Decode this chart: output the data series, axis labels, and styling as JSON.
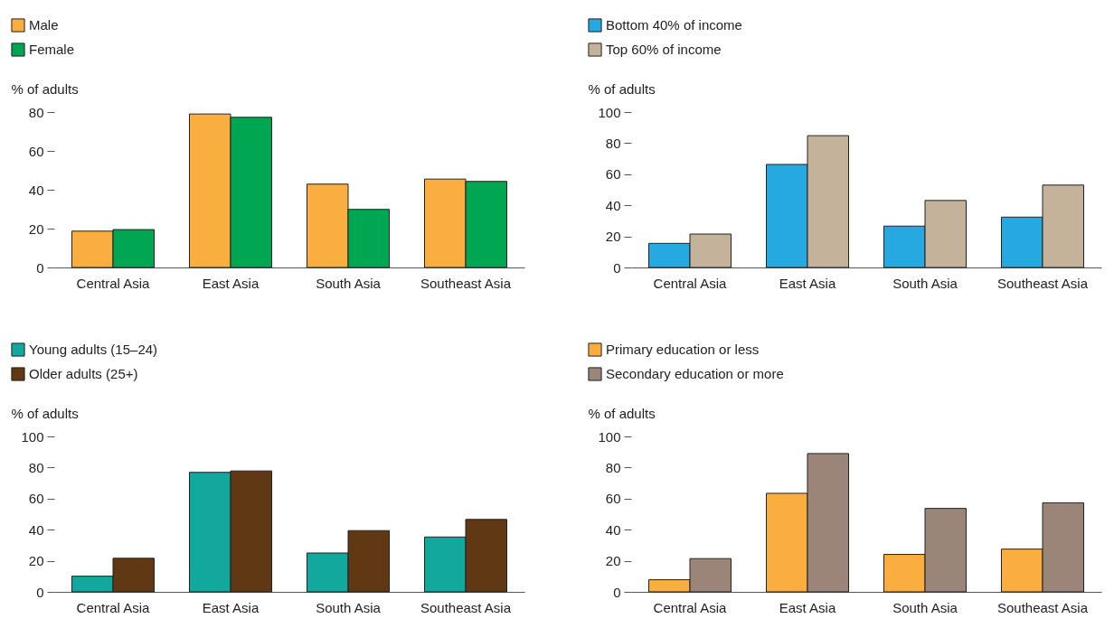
{
  "chart_data": [
    {
      "type": "bar",
      "ylabel": "% of adults",
      "categories": [
        "Central Asia",
        "East Asia",
        "South Asia",
        "Southeast Asia"
      ],
      "ylim": [
        0,
        80
      ],
      "yticks": [
        0,
        20,
        40,
        60,
        80
      ],
      "legend": "top left",
      "grid": false,
      "series": [
        {
          "name": "Male",
          "color": "#f9ae3f",
          "values": [
            18.7,
            79,
            42.9,
            45.5
          ]
        },
        {
          "name": "Female",
          "color": "#00a651",
          "values": [
            19.5,
            77.3,
            29.9,
            44.3
          ]
        }
      ]
    },
    {
      "type": "bar",
      "ylabel": "% of adults",
      "categories": [
        "Central Asia",
        "East Asia",
        "South Asia",
        "Southeast Asia"
      ],
      "ylim": [
        0,
        100
      ],
      "yticks": [
        0,
        20,
        40,
        60,
        80,
        100
      ],
      "legend": "top left",
      "grid": false,
      "series": [
        {
          "name": "Bottom 40% of income",
          "color": "#25a9e0",
          "values": [
            15.5,
            66.3,
            26.6,
            32.4
          ]
        },
        {
          "name": "Top 60% of income",
          "color": "#c4b39a",
          "values": [
            21.5,
            84.8,
            43.1,
            53
          ]
        }
      ]
    },
    {
      "type": "bar",
      "ylabel": "% of adults",
      "categories": [
        "Central Asia",
        "East Asia",
        "South Asia",
        "Southeast Asia"
      ],
      "ylim": [
        0,
        100
      ],
      "yticks": [
        0,
        20,
        40,
        60,
        80,
        100
      ],
      "legend": "top left",
      "grid": false,
      "series": [
        {
          "name": "Young adults (15–24)",
          "color": "#13a89e",
          "values": [
            10.1,
            76.9,
            25,
            35.3
          ]
        },
        {
          "name": "Older adults (25+)",
          "color": "#603813",
          "values": [
            21.6,
            77.8,
            39.4,
            46.6
          ]
        }
      ]
    },
    {
      "type": "bar",
      "ylabel": "% of adults",
      "categories": [
        "Central Asia",
        "East Asia",
        "South Asia",
        "Southeast Asia"
      ],
      "ylim": [
        0,
        100
      ],
      "yticks": [
        0,
        20,
        40,
        60,
        80,
        100
      ],
      "legend": "top left",
      "grid": false,
      "series": [
        {
          "name": "Primary education or less",
          "color": "#f9ae3f",
          "values": [
            7.8,
            63.4,
            24.1,
            27.5
          ]
        },
        {
          "name": "Secondary education or more",
          "color": "#9b8579",
          "values": [
            21.4,
            89,
            53.7,
            57.3
          ]
        }
      ]
    }
  ]
}
